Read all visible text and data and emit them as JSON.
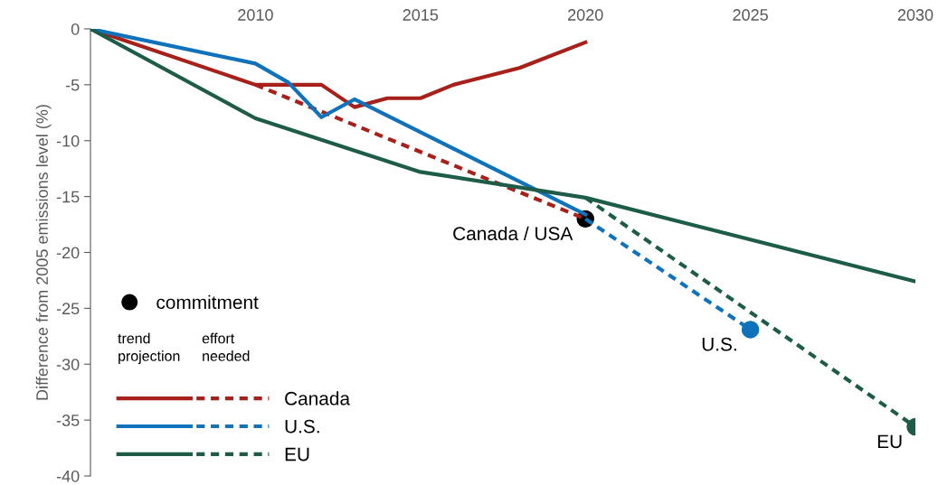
{
  "chart_data": {
    "type": "line",
    "ylabel": "Difference from 2005 emissions level (%)",
    "xlim": [
      2005,
      2030
    ],
    "xticks": [
      {
        "value": 2005,
        "label": null
      },
      2010,
      2015,
      2020,
      2025,
      2030
    ],
    "ylim": [
      -40,
      0
    ],
    "yticks": [
      -40,
      -35,
      -30,
      -25,
      -20,
      -15,
      -10,
      -5,
      0
    ],
    "grid": false,
    "legend": "bottom left",
    "series": [
      {
        "color": "#a8201a",
        "line_style": "solid",
        "x": [
          2005,
          2010,
          2012,
          2013,
          2014,
          2015,
          2016,
          2018,
          2020
        ],
        "values": [
          0,
          -5,
          -5,
          -7,
          -6.2,
          -6.2,
          -5,
          -3.5,
          -1.2
        ]
      },
      {
        "name": "Canada",
        "color": "#a8201a",
        "line_style": "dashed",
        "x": [
          2010,
          2020
        ],
        "values": [
          -5,
          -17
        ]
      },
      {
        "color": "#0f72ba",
        "line_style": "solid",
        "x": [
          2005,
          2010,
          2011,
          2012,
          2013,
          2020
        ],
        "values": [
          0,
          -3.1,
          -4.8,
          -7.9,
          -6.3,
          -16.6
        ]
      },
      {
        "name": "U.S.",
        "color": "#0f72ba",
        "line_style": "dashed",
        "x": [
          2020,
          2025
        ],
        "values": [
          -17,
          -26.9
        ]
      },
      {
        "color": "#1e5c4a",
        "line_style": "solid",
        "x": [
          2005,
          2010,
          2015,
          2020,
          2030
        ],
        "values": [
          0,
          -8,
          -12.8,
          -15.1,
          -22.6
        ]
      },
      {
        "name": "EU",
        "color": "#1e5c4a",
        "line_style": "dashed",
        "x": [
          2020,
          2030
        ],
        "values": [
          -15.1,
          -35.6
        ]
      },
      {
        "name": "commitment",
        "type": "scatter",
        "marker": "circle",
        "color": "#000000",
        "colors": [
          "#000000",
          "#0f72ba",
          "#1e5c4a"
        ],
        "x": [
          2020,
          2025,
          2030
        ],
        "values": [
          -17,
          -26.9,
          -35.6
        ]
      }
    ],
    "annotations": [
      {
        "text": "Canada / USA",
        "x": 2020,
        "y": -17
      },
      {
        "text": "U.S.",
        "x": 2025,
        "y": -26.9
      },
      {
        "text": "EU",
        "x": 2030,
        "y": -35.6
      },
      "trend\nprojection",
      "effort\nneeded"
    ]
  }
}
